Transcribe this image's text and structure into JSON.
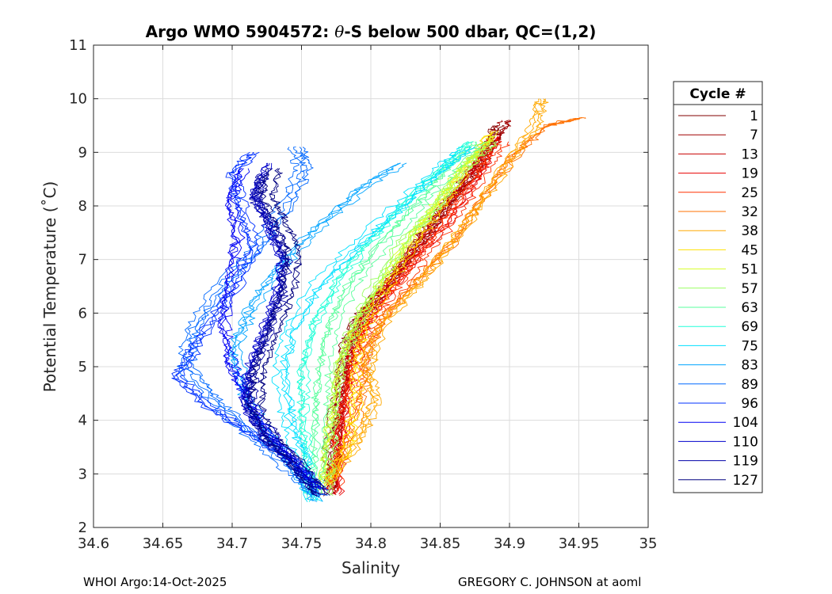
{
  "chart_data": {
    "type": "line",
    "title_prefix": "Argo WMO 5904572: ",
    "title_symbol": "θ",
    "title_suffix": "-S below 500 dbar,  QC=(1,2)",
    "xlabel": "Salinity",
    "ylabel": "Potential Temperature (˚C)",
    "xlim": [
      34.6,
      35.0
    ],
    "ylim": [
      2,
      11
    ],
    "xticks": [
      34.6,
      34.65,
      34.7,
      34.75,
      34.8,
      34.85,
      34.9,
      34.95,
      35.0
    ],
    "xtick_labels": [
      "34.6",
      "34.65",
      "34.7",
      "34.75",
      "34.8",
      "34.85",
      "34.9",
      "34.95",
      "35"
    ],
    "yticks": [
      2,
      3,
      4,
      5,
      6,
      7,
      8,
      9,
      10,
      11
    ],
    "grid": true,
    "legend": {
      "title": "Cycle #",
      "placement": "outside-right",
      "entries": [
        {
          "label": "1",
          "color": "#800000"
        },
        {
          "label": "7",
          "color": "#a00000"
        },
        {
          "label": "13",
          "color": "#c80000"
        },
        {
          "label": "19",
          "color": "#e80000"
        },
        {
          "label": "25",
          "color": "#ff3000"
        },
        {
          "label": "32",
          "color": "#ff7000"
        },
        {
          "label": "38",
          "color": "#ffa800"
        },
        {
          "label": "45",
          "color": "#ffe000"
        },
        {
          "label": "51",
          "color": "#d8ff28"
        },
        {
          "label": "57",
          "color": "#98ff60"
        },
        {
          "label": "63",
          "color": "#58ff9c"
        },
        {
          "label": "69",
          "color": "#20ffd8"
        },
        {
          "label": "75",
          "color": "#00e0ff"
        },
        {
          "label": "83",
          "color": "#00a4ff"
        },
        {
          "label": "89",
          "color": "#0068ff"
        },
        {
          "label": "96",
          "color": "#0030ff"
        },
        {
          "label": "104",
          "color": "#0000f4"
        },
        {
          "label": "110",
          "color": "#0000cc"
        },
        {
          "label": "119",
          "color": "#0000a8"
        },
        {
          "label": "127",
          "color": "#000080"
        }
      ]
    },
    "series": [
      {
        "name": "1",
        "color": "#800000",
        "points": [
          [
            34.77,
            2.7
          ],
          [
            34.77,
            3.5
          ],
          [
            34.775,
            4.5
          ],
          [
            34.78,
            5.3
          ],
          [
            34.79,
            5.9
          ],
          [
            34.81,
            6.5
          ],
          [
            34.83,
            7.2
          ],
          [
            34.85,
            7.9
          ],
          [
            34.87,
            8.5
          ],
          [
            34.885,
            9.1
          ],
          [
            34.89,
            9.5
          ]
        ]
      },
      {
        "name": "7",
        "color": "#a00000",
        "points": [
          [
            34.768,
            2.6
          ],
          [
            34.772,
            3.6
          ],
          [
            34.776,
            4.6
          ],
          [
            34.782,
            5.4
          ],
          [
            34.795,
            6.0
          ],
          [
            34.812,
            6.6
          ],
          [
            34.832,
            7.3
          ],
          [
            34.852,
            8.0
          ],
          [
            34.87,
            8.6
          ],
          [
            34.885,
            9.2
          ],
          [
            34.895,
            9.6
          ]
        ]
      },
      {
        "name": "13",
        "color": "#c80000",
        "points": [
          [
            34.772,
            2.7
          ],
          [
            34.775,
            3.7
          ],
          [
            34.78,
            4.7
          ],
          [
            34.785,
            5.5
          ],
          [
            34.795,
            6.1
          ],
          [
            34.815,
            6.7
          ],
          [
            34.835,
            7.4
          ],
          [
            34.855,
            8.1
          ],
          [
            34.872,
            8.7
          ],
          [
            34.886,
            9.3
          ]
        ]
      },
      {
        "name": "19",
        "color": "#e80000",
        "points": [
          [
            34.775,
            2.6
          ],
          [
            34.778,
            3.8
          ],
          [
            34.783,
            4.8
          ],
          [
            34.79,
            5.5
          ],
          [
            34.8,
            6.0
          ],
          [
            34.818,
            6.6
          ],
          [
            34.838,
            7.2
          ],
          [
            34.86,
            7.9
          ],
          [
            34.878,
            8.6
          ],
          [
            34.89,
            9.3
          ]
        ]
      },
      {
        "name": "25",
        "color": "#ff3000",
        "points": [
          [
            34.773,
            2.7
          ],
          [
            34.78,
            3.7
          ],
          [
            34.787,
            4.6
          ],
          [
            34.795,
            5.3
          ],
          [
            34.805,
            5.9
          ],
          [
            34.822,
            6.5
          ],
          [
            34.842,
            7.2
          ],
          [
            34.862,
            7.9
          ],
          [
            34.88,
            8.6
          ],
          [
            34.895,
            9.2
          ]
        ]
      },
      {
        "name": "32",
        "color": "#ff7000",
        "points": [
          [
            34.772,
            2.8
          ],
          [
            34.79,
            3.8
          ],
          [
            34.798,
            4.6
          ],
          [
            34.8,
            5.3
          ],
          [
            34.815,
            6.0
          ],
          [
            34.84,
            6.7
          ],
          [
            34.865,
            7.4
          ],
          [
            34.885,
            8.2
          ],
          [
            34.905,
            8.9
          ],
          [
            34.93,
            9.5
          ],
          [
            34.955,
            9.65
          ]
        ]
      },
      {
        "name": "38",
        "color": "#ffa800",
        "points": [
          [
            34.772,
            2.9
          ],
          [
            34.795,
            3.7
          ],
          [
            34.805,
            4.4
          ],
          [
            34.8,
            5.0
          ],
          [
            34.81,
            5.8
          ],
          [
            34.835,
            6.5
          ],
          [
            34.86,
            7.3
          ],
          [
            34.88,
            8.0
          ],
          [
            34.9,
            8.8
          ],
          [
            34.92,
            9.5
          ],
          [
            34.925,
            10.0
          ]
        ]
      },
      {
        "name": "45",
        "color": "#ffe000",
        "points": [
          [
            34.77,
            2.8
          ],
          [
            34.785,
            3.6
          ],
          [
            34.79,
            4.4
          ],
          [
            34.79,
            5.2
          ],
          [
            34.8,
            6.0
          ],
          [
            34.82,
            6.8
          ],
          [
            34.84,
            7.6
          ],
          [
            34.86,
            8.3
          ],
          [
            34.875,
            8.9
          ],
          [
            34.89,
            9.4
          ]
        ]
      },
      {
        "name": "51",
        "color": "#d8ff28",
        "points": [
          [
            34.765,
            2.7
          ],
          [
            34.77,
            3.5
          ],
          [
            34.775,
            4.3
          ],
          [
            34.78,
            5.1
          ],
          [
            34.79,
            5.8
          ],
          [
            34.81,
            6.6
          ],
          [
            34.83,
            7.4
          ],
          [
            34.85,
            8.1
          ],
          [
            34.87,
            8.8
          ],
          [
            34.89,
            9.3
          ]
        ]
      },
      {
        "name": "57",
        "color": "#98ff60",
        "points": [
          [
            34.765,
            2.6
          ],
          [
            34.768,
            3.4
          ],
          [
            34.77,
            4.2
          ],
          [
            34.775,
            5.0
          ],
          [
            34.785,
            5.7
          ],
          [
            34.8,
            6.5
          ],
          [
            34.82,
            7.3
          ],
          [
            34.845,
            8.0
          ],
          [
            34.865,
            8.7
          ],
          [
            34.885,
            9.2
          ]
        ]
      },
      {
        "name": "63",
        "color": "#58ff9c",
        "points": [
          [
            34.762,
            2.6
          ],
          [
            34.765,
            3.4
          ],
          [
            34.765,
            4.2
          ],
          [
            34.768,
            5.0
          ],
          [
            34.775,
            5.8
          ],
          [
            34.79,
            6.6
          ],
          [
            34.815,
            7.4
          ],
          [
            34.84,
            8.1
          ],
          [
            34.86,
            8.7
          ],
          [
            34.88,
            9.2
          ]
        ]
      },
      {
        "name": "69",
        "color": "#20ffd8",
        "points": [
          [
            34.76,
            2.5
          ],
          [
            34.758,
            3.3
          ],
          [
            34.755,
            4.1
          ],
          [
            34.755,
            4.9
          ],
          [
            34.762,
            5.7
          ],
          [
            34.78,
            6.6
          ],
          [
            34.805,
            7.4
          ],
          [
            34.83,
            8.1
          ],
          [
            34.855,
            8.7
          ],
          [
            34.875,
            9.2
          ]
        ]
      },
      {
        "name": "75",
        "color": "#00e0ff",
        "points": [
          [
            34.758,
            2.5
          ],
          [
            34.75,
            3.3
          ],
          [
            34.74,
            4.0
          ],
          [
            34.735,
            4.8
          ],
          [
            34.74,
            5.6
          ],
          [
            34.76,
            6.5
          ],
          [
            34.79,
            7.3
          ],
          [
            34.82,
            8.0
          ],
          [
            34.85,
            8.7
          ],
          [
            34.87,
            9.1
          ]
        ]
      },
      {
        "name": "83",
        "color": "#00a4ff",
        "points": [
          [
            34.758,
            2.5
          ],
          [
            34.74,
            3.2
          ],
          [
            34.72,
            3.9
          ],
          [
            34.705,
            4.6
          ],
          [
            34.7,
            5.3
          ],
          [
            34.71,
            6.0
          ],
          [
            34.73,
            6.8
          ],
          [
            34.76,
            7.6
          ],
          [
            34.79,
            8.3
          ],
          [
            34.82,
            8.8
          ]
        ]
      },
      {
        "name": "89",
        "color": "#0068ff",
        "points": [
          [
            34.76,
            2.6
          ],
          [
            34.735,
            3.2
          ],
          [
            34.71,
            3.8
          ],
          [
            34.685,
            4.4
          ],
          [
            34.665,
            5.0
          ],
          [
            34.67,
            5.7
          ],
          [
            34.69,
            6.5
          ],
          [
            34.72,
            7.3
          ],
          [
            34.74,
            8.1
          ],
          [
            34.75,
            8.7
          ],
          [
            34.745,
            9.1
          ]
        ]
      },
      {
        "name": "96",
        "color": "#0030ff",
        "points": [
          [
            34.765,
            2.7
          ],
          [
            34.74,
            3.3
          ],
          [
            34.71,
            3.8
          ],
          [
            34.68,
            4.3
          ],
          [
            34.66,
            4.8
          ],
          [
            34.675,
            5.5
          ],
          [
            34.7,
            6.4
          ],
          [
            34.715,
            7.2
          ],
          [
            34.705,
            8.0
          ],
          [
            34.7,
            8.6
          ],
          [
            34.715,
            9.0
          ]
        ]
      },
      {
        "name": "104",
        "color": "#0000f4",
        "points": [
          [
            34.765,
            2.7
          ],
          [
            34.745,
            3.3
          ],
          [
            34.725,
            3.9
          ],
          [
            34.71,
            4.5
          ],
          [
            34.7,
            5.1
          ],
          [
            34.695,
            5.8
          ],
          [
            34.7,
            6.6
          ],
          [
            34.705,
            7.4
          ],
          [
            34.7,
            8.1
          ],
          [
            34.71,
            8.7
          ]
        ]
      },
      {
        "name": "110",
        "color": "#0000cc",
        "points": [
          [
            34.765,
            2.7
          ],
          [
            34.745,
            3.3
          ],
          [
            34.725,
            3.8
          ],
          [
            34.712,
            4.3
          ],
          [
            34.715,
            4.9
          ],
          [
            34.725,
            5.6
          ],
          [
            34.735,
            6.3
          ],
          [
            34.74,
            7.0
          ],
          [
            34.73,
            7.6
          ],
          [
            34.72,
            8.2
          ],
          [
            34.73,
            8.8
          ]
        ]
      },
      {
        "name": "119",
        "color": "#0000a8",
        "points": [
          [
            34.765,
            2.6
          ],
          [
            34.745,
            3.2
          ],
          [
            34.725,
            3.7
          ],
          [
            34.715,
            4.3
          ],
          [
            34.718,
            4.9
          ],
          [
            34.728,
            5.6
          ],
          [
            34.738,
            6.3
          ],
          [
            34.742,
            7.0
          ],
          [
            34.733,
            7.6
          ],
          [
            34.72,
            8.1
          ],
          [
            34.725,
            8.6
          ]
        ]
      },
      {
        "name": "127",
        "color": "#000080",
        "points": [
          [
            34.765,
            2.6
          ],
          [
            34.747,
            3.2
          ],
          [
            34.728,
            3.7
          ],
          [
            34.717,
            4.3
          ],
          [
            34.72,
            5.0
          ],
          [
            34.73,
            5.7
          ],
          [
            34.74,
            6.4
          ],
          [
            34.745,
            7.1
          ],
          [
            34.735,
            7.7
          ],
          [
            34.725,
            8.2
          ],
          [
            34.73,
            8.7
          ]
        ]
      }
    ]
  },
  "footer": {
    "left": "WHOI Argo:14-Oct-2025",
    "right": "GREGORY C. JOHNSON at aoml"
  }
}
